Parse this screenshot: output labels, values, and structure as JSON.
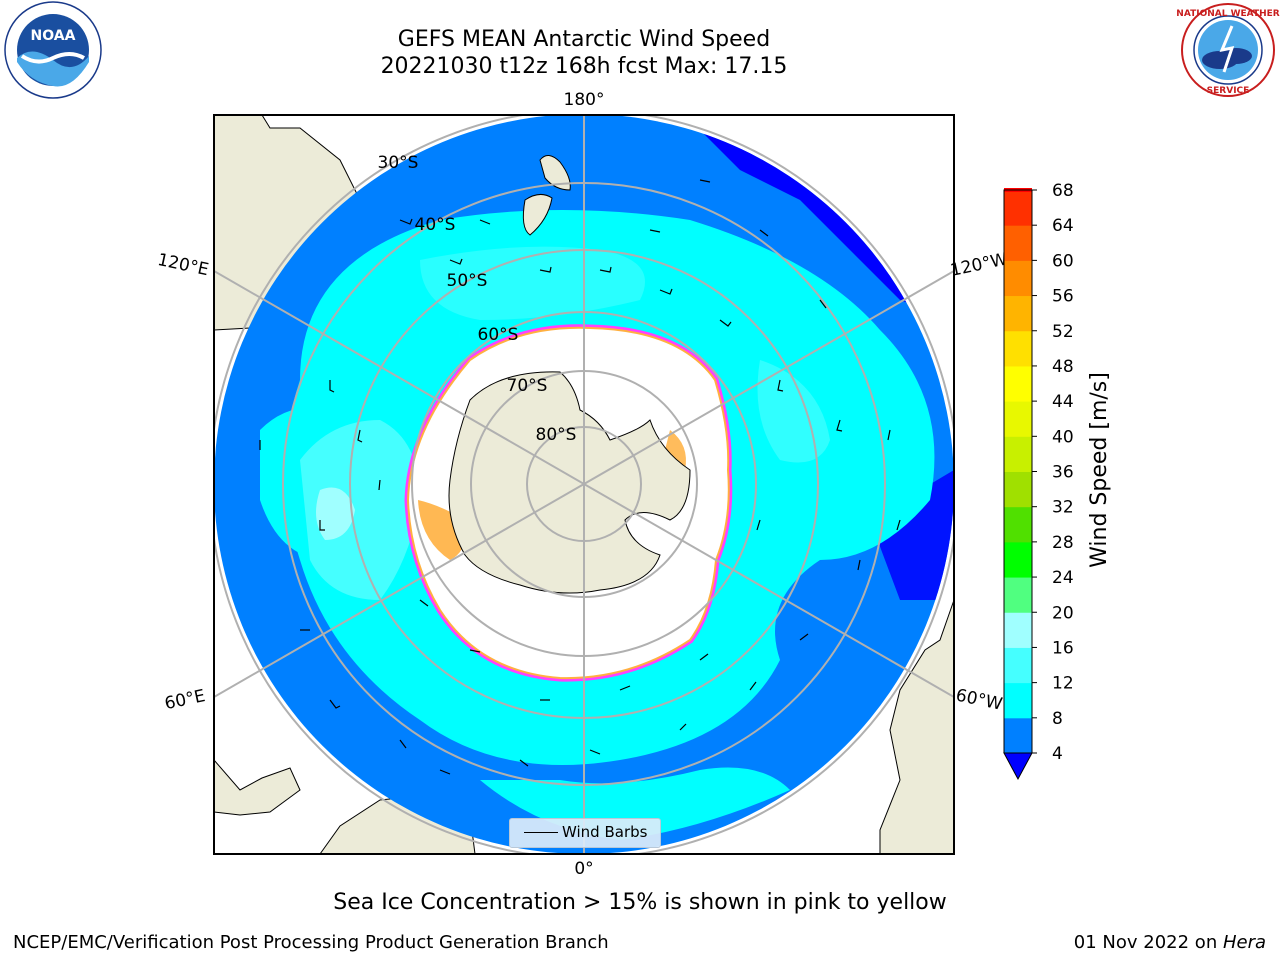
{
  "title": {
    "line1": "GEFS MEAN Antarctic Wind Speed",
    "line2": "20221030 t12z 168h fcst   Max: 17.15"
  },
  "map": {
    "projection": "south-polar-stereographic",
    "longitude_labels": [
      "180°",
      "120°E",
      "120°W",
      "60°E",
      "60°W",
      "0°"
    ],
    "latitude_labels": [
      "30°S",
      "40°S",
      "50°S",
      "60°S",
      "70°S",
      "80°S"
    ],
    "colors": {
      "land": "#ecebd8",
      "ocean_outside": "#ffffff",
      "wind_4_8": "#0080ff",
      "wind_8_12": "#00ffff",
      "wind_12_16": "#45ffff",
      "wind_16_20": "#a0ffff",
      "wind_lt_4": "#0000ff",
      "sea_ice_edge": "#ff40ff",
      "sea_ice_inner": "#ffb040",
      "grid": "#b0b0b0"
    }
  },
  "legend": {
    "label": "Wind Barbs"
  },
  "colorbar": {
    "label": "Wind Speed [m/s]",
    "ticks": [
      "4",
      "8",
      "12",
      "16",
      "20",
      "24",
      "28",
      "32",
      "36",
      "40",
      "44",
      "48",
      "52",
      "56",
      "60",
      "64",
      "68"
    ],
    "colors": [
      "#0080ff",
      "#00ffff",
      "#45ffff",
      "#a0ffff",
      "#50ff80",
      "#00ff00",
      "#50e000",
      "#a0e000",
      "#c8f000",
      "#e8f800",
      "#ffff00",
      "#ffe000",
      "#ffb400",
      "#ff8c00",
      "#ff6000",
      "#ff3000"
    ],
    "under_color": "#0000ff",
    "over_color": "#ff0000"
  },
  "caption": "Sea Ice Concentration > 15% is shown in pink to yellow",
  "footer": {
    "left": "NCEP/EMC/Verification Post Processing Product Generation Branch",
    "right_date": "01 Nov 2022 on ",
    "right_host": "Hera"
  },
  "logos": {
    "left": "noaa-logo",
    "right": "national-weather-service-logo"
  }
}
